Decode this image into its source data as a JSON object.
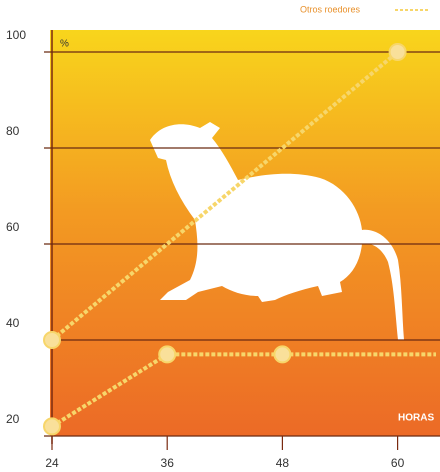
{
  "chart_data": {
    "type": "line",
    "legend": "Otros roedores",
    "y_unit_label": "%",
    "x_label": "HORAS",
    "xlim": [
      24,
      64
    ],
    "xticks": [
      24,
      36,
      48,
      60
    ],
    "ylim": [
      20,
      100
    ],
    "yticks": [
      20,
      40,
      60,
      80,
      100
    ],
    "grid": true,
    "series": [
      {
        "color": "#f7d66a",
        "x": [
          24,
          60
        ],
        "values": [
          40,
          100
        ]
      },
      {
        "color": "#f7d66a",
        "x": [
          24,
          36,
          48,
          64
        ],
        "values": [
          22,
          37,
          37,
          37
        ]
      }
    ]
  }
}
